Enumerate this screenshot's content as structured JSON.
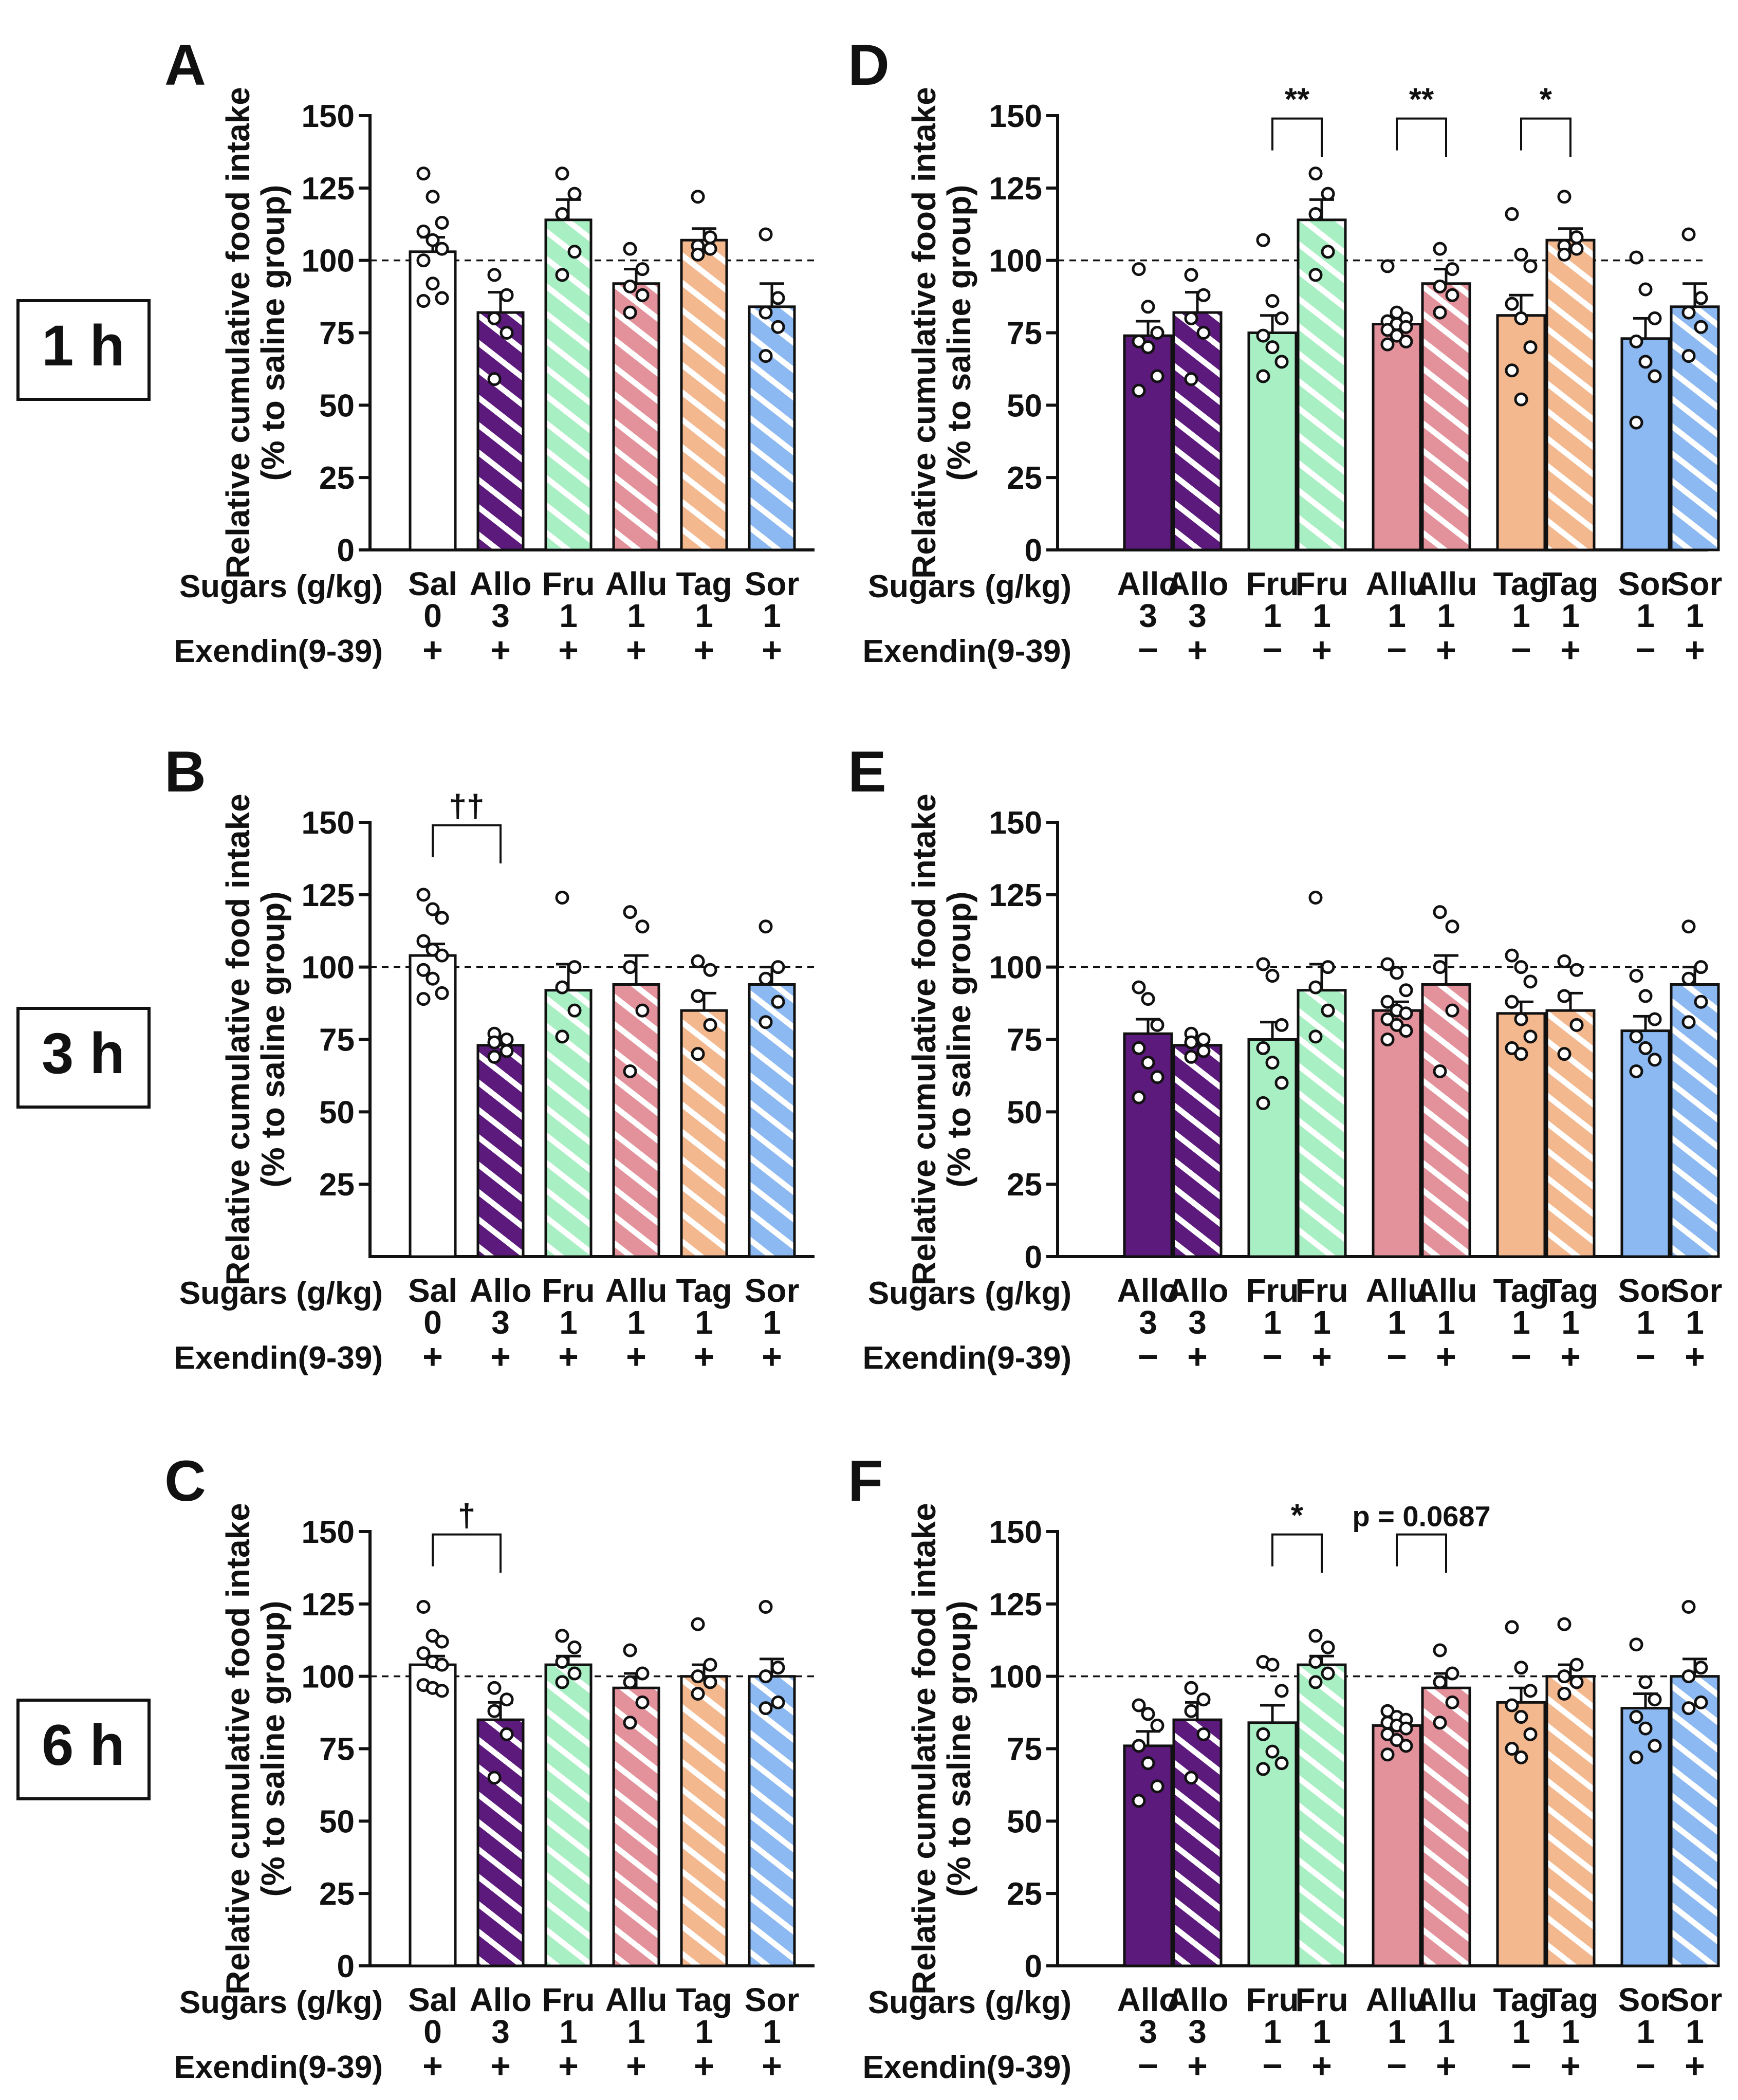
{
  "time_labels": [
    "1 h",
    "3 h",
    "6 h"
  ],
  "row_labels": {
    "sugars": "Sugars (g/kg)",
    "exendin": "Exendin(9-39)"
  },
  "colors": {
    "Sal": "#ffffff",
    "Allo": "#5c1a7c",
    "Fru": "#a8efc4",
    "Allu": "#e3929b",
    "Tag": "#f3b88e",
    "Sor": "#8cb9f2"
  },
  "chart_data": [
    {
      "id": "A",
      "type": "bar",
      "layout": "left",
      "title": "A",
      "ylabel_line1": "Relative cumulative food intake",
      "ylabel_line2": "(% to saline group)",
      "ylim": [
        0,
        150
      ],
      "yticks": [
        "0",
        "25",
        "50",
        "75",
        "100",
        "125",
        "150"
      ],
      "reference_line": 100,
      "groups": [
        {
          "label": "Sal",
          "dose": "0",
          "exendin": "+",
          "color_key": "Sal",
          "hatched": false,
          "mean": 103,
          "sem": 5,
          "points": [
            130,
            122,
            113,
            110,
            107,
            104,
            100,
            92,
            87,
            86
          ]
        },
        {
          "label": "Allo",
          "dose": "3",
          "exendin": "+",
          "color_key": "Allo",
          "hatched": true,
          "mean": 82,
          "sem": 7,
          "points": [
            95,
            88,
            80,
            75,
            59
          ]
        },
        {
          "label": "Fru",
          "dose": "1",
          "exendin": "+",
          "color_key": "Fru",
          "hatched": true,
          "mean": 114,
          "sem": 7,
          "points": [
            130,
            123,
            116,
            103,
            95
          ]
        },
        {
          "label": "Allu",
          "dose": "1",
          "exendin": "+",
          "color_key": "Allu",
          "hatched": true,
          "mean": 92,
          "sem": 5,
          "points": [
            104,
            97,
            91,
            88,
            82
          ]
        },
        {
          "label": "Tag",
          "dose": "1",
          "exendin": "+",
          "color_key": "Tag",
          "hatched": true,
          "mean": 107,
          "sem": 4,
          "points": [
            122,
            108,
            105,
            104,
            102
          ]
        },
        {
          "label": "Sor",
          "dose": "1",
          "exendin": "+",
          "color_key": "Sor",
          "hatched": true,
          "mean": 84,
          "sem": 8,
          "points": [
            109,
            87,
            82,
            77,
            67
          ]
        }
      ],
      "annotations": []
    },
    {
      "id": "B",
      "type": "bar",
      "layout": "left",
      "title": "B",
      "ylabel_line1": "Relative cumulative food intake",
      "ylabel_line2": "(% to saline group)",
      "ylim": [
        0,
        150
      ],
      "yticks": [
        "25",
        "50",
        "75",
        "100",
        "125",
        "150"
      ],
      "reference_line": 100,
      "groups": [
        {
          "label": "Sal",
          "dose": "0",
          "exendin": "+",
          "color_key": "Sal",
          "hatched": false,
          "mean": 104,
          "sem": 4,
          "points": [
            125,
            120,
            117,
            109,
            106,
            104,
            99,
            96,
            91,
            89
          ]
        },
        {
          "label": "Allo",
          "dose": "3",
          "exendin": "+",
          "color_key": "Allo",
          "hatched": true,
          "mean": 73,
          "sem": 2,
          "points": [
            77,
            75,
            74,
            71,
            69
          ]
        },
        {
          "label": "Fru",
          "dose": "1",
          "exendin": "+",
          "color_key": "Fru",
          "hatched": true,
          "mean": 92,
          "sem": 9,
          "points": [
            124,
            100,
            93,
            85,
            76
          ]
        },
        {
          "label": "Allu",
          "dose": "1",
          "exendin": "+",
          "color_key": "Allu",
          "hatched": true,
          "mean": 94,
          "sem": 10,
          "points": [
            119,
            114,
            100,
            85,
            64
          ]
        },
        {
          "label": "Tag",
          "dose": "1",
          "exendin": "+",
          "color_key": "Tag",
          "hatched": true,
          "mean": 85,
          "sem": 6,
          "points": [
            102,
            99,
            90,
            80,
            70
          ]
        },
        {
          "label": "Sor",
          "dose": "1",
          "exendin": "+",
          "color_key": "Sor",
          "hatched": true,
          "mean": 94,
          "sem": 6,
          "points": [
            114,
            100,
            96,
            88,
            81
          ]
        }
      ],
      "annotations": [
        {
          "type": "bracket",
          "from": 0,
          "to": 1,
          "text": "††",
          "y": 149
        }
      ]
    },
    {
      "id": "C",
      "type": "bar",
      "layout": "left",
      "title": "C",
      "ylabel_line1": "Relative cumulative food intake",
      "ylabel_line2": "(% to saline group)",
      "ylim": [
        0,
        150
      ],
      "yticks": [
        "0",
        "25",
        "50",
        "75",
        "100",
        "125",
        "150"
      ],
      "reference_line": 100,
      "groups": [
        {
          "label": "Sal",
          "dose": "0",
          "exendin": "+",
          "color_key": "Sal",
          "hatched": false,
          "mean": 104,
          "sem": 3,
          "points": [
            124,
            114,
            112,
            108,
            105,
            104,
            97,
            96,
            95
          ]
        },
        {
          "label": "Allo",
          "dose": "3",
          "exendin": "+",
          "color_key": "Allo",
          "hatched": true,
          "mean": 85,
          "sem": 6,
          "points": [
            96,
            92,
            88,
            80,
            65
          ]
        },
        {
          "label": "Fru",
          "dose": "1",
          "exendin": "+",
          "color_key": "Fru",
          "hatched": true,
          "mean": 104,
          "sem": 3,
          "points": [
            114,
            110,
            105,
            101,
            98
          ]
        },
        {
          "label": "Allu",
          "dose": "1",
          "exendin": "+",
          "color_key": "Allu",
          "hatched": true,
          "mean": 96,
          "sem": 5,
          "points": [
            109,
            101,
            98,
            91,
            84
          ]
        },
        {
          "label": "Tag",
          "dose": "1",
          "exendin": "+",
          "color_key": "Tag",
          "hatched": true,
          "mean": 100,
          "sem": 4,
          "points": [
            118,
            104,
            100,
            98,
            94
          ]
        },
        {
          "label": "Sor",
          "dose": "1",
          "exendin": "+",
          "color_key": "Sor",
          "hatched": true,
          "mean": 100,
          "sem": 6,
          "points": [
            124,
            103,
            100,
            91,
            89
          ]
        }
      ],
      "annotations": [
        {
          "type": "bracket",
          "from": 0,
          "to": 1,
          "text": "†",
          "y": 149
        }
      ]
    },
    {
      "id": "D",
      "type": "bar",
      "layout": "right",
      "title": "D",
      "ylabel_line1": "Relative cumulative food intake",
      "ylabel_line2": "(% to saline group)",
      "ylim": [
        0,
        150
      ],
      "yticks": [
        "0",
        "25",
        "50",
        "75",
        "100",
        "125",
        "150"
      ],
      "reference_line": 100,
      "groups": [
        {
          "label": "Allo",
          "dose": "3",
          "exendin": "−",
          "color_key": "Allo",
          "hatched": false,
          "mean": 74,
          "sem": 5,
          "points": [
            97,
            84,
            75,
            72,
            70,
            60,
            55
          ]
        },
        {
          "label": "Allo",
          "dose": "3",
          "exendin": "+",
          "color_key": "Allo",
          "hatched": true,
          "mean": 82,
          "sem": 7,
          "points": [
            95,
            88,
            80,
            75,
            59
          ]
        },
        {
          "label": "Fru",
          "dose": "1",
          "exendin": "−",
          "color_key": "Fru",
          "hatched": false,
          "mean": 75,
          "sem": 6,
          "points": [
            107,
            86,
            80,
            74,
            70,
            65,
            60
          ]
        },
        {
          "label": "Fru",
          "dose": "1",
          "exendin": "+",
          "color_key": "Fru",
          "hatched": true,
          "mean": 114,
          "sem": 7,
          "points": [
            130,
            123,
            116,
            103,
            95
          ]
        },
        {
          "label": "Allu",
          "dose": "1",
          "exendin": "−",
          "color_key": "Allu",
          "hatched": false,
          "mean": 78,
          "sem": 2,
          "points": [
            98,
            82,
            80,
            79,
            78,
            77,
            76,
            74,
            72,
            71
          ]
        },
        {
          "label": "Allu",
          "dose": "1",
          "exendin": "+",
          "color_key": "Allu",
          "hatched": true,
          "mean": 92,
          "sem": 5,
          "points": [
            104,
            97,
            91,
            88,
            82
          ]
        },
        {
          "label": "Tag",
          "dose": "1",
          "exendin": "−",
          "color_key": "Tag",
          "hatched": false,
          "mean": 81,
          "sem": 7,
          "points": [
            116,
            102,
            98,
            85,
            80,
            70,
            62,
            52
          ]
        },
        {
          "label": "Tag",
          "dose": "1",
          "exendin": "+",
          "color_key": "Tag",
          "hatched": true,
          "mean": 107,
          "sem": 4,
          "points": [
            122,
            108,
            105,
            104,
            102
          ]
        },
        {
          "label": "Sor",
          "dose": "1",
          "exendin": "−",
          "color_key": "Sor",
          "hatched": false,
          "mean": 73,
          "sem": 7,
          "points": [
            101,
            90,
            80,
            72,
            65,
            60,
            44
          ]
        },
        {
          "label": "Sor",
          "dose": "1",
          "exendin": "+",
          "color_key": "Sor",
          "hatched": true,
          "mean": 84,
          "sem": 8,
          "points": [
            109,
            87,
            82,
            77,
            67
          ]
        }
      ],
      "annotations": [
        {
          "type": "bracket",
          "from": 2,
          "to": 3,
          "text": "**",
          "y": 149
        },
        {
          "type": "bracket",
          "from": 4,
          "to": 5,
          "text": "**",
          "y": 149
        },
        {
          "type": "bracket",
          "from": 6,
          "to": 7,
          "text": "*",
          "y": 149
        }
      ]
    },
    {
      "id": "E",
      "type": "bar",
      "layout": "right",
      "title": "E",
      "ylabel_line1": "Relative cumulative food intake",
      "ylabel_line2": "(% to saline group)",
      "ylim": [
        0,
        150
      ],
      "yticks": [
        "0",
        "25",
        "50",
        "75",
        "100",
        "125",
        "150"
      ],
      "reference_line": 100,
      "groups": [
        {
          "label": "Allo",
          "dose": "3",
          "exendin": "−",
          "color_key": "Allo",
          "hatched": false,
          "mean": 77,
          "sem": 5,
          "points": [
            93,
            89,
            80,
            72,
            67,
            62,
            55
          ]
        },
        {
          "label": "Allo",
          "dose": "3",
          "exendin": "+",
          "color_key": "Allo",
          "hatched": true,
          "mean": 73,
          "sem": 2,
          "points": [
            77,
            75,
            74,
            71,
            69
          ]
        },
        {
          "label": "Fru",
          "dose": "1",
          "exendin": "−",
          "color_key": "Fru",
          "hatched": false,
          "mean": 75,
          "sem": 6,
          "points": [
            101,
            97,
            80,
            72,
            67,
            60,
            53
          ]
        },
        {
          "label": "Fru",
          "dose": "1",
          "exendin": "+",
          "color_key": "Fru",
          "hatched": true,
          "mean": 92,
          "sem": 9,
          "points": [
            124,
            100,
            93,
            85,
            76
          ]
        },
        {
          "label": "Allu",
          "dose": "1",
          "exendin": "−",
          "color_key": "Allu",
          "hatched": false,
          "mean": 85,
          "sem": 3,
          "points": [
            101,
            98,
            92,
            88,
            85,
            84,
            82,
            80,
            78,
            75
          ]
        },
        {
          "label": "Allu",
          "dose": "1",
          "exendin": "+",
          "color_key": "Allu",
          "hatched": true,
          "mean": 94,
          "sem": 10,
          "points": [
            119,
            114,
            100,
            85,
            64
          ]
        },
        {
          "label": "Tag",
          "dose": "1",
          "exendin": "−",
          "color_key": "Tag",
          "hatched": false,
          "mean": 84,
          "sem": 4,
          "points": [
            104,
            100,
            95,
            88,
            82,
            76,
            72,
            70
          ]
        },
        {
          "label": "Tag",
          "dose": "1",
          "exendin": "+",
          "color_key": "Tag",
          "hatched": true,
          "mean": 85,
          "sem": 6,
          "points": [
            102,
            99,
            90,
            80,
            70
          ]
        },
        {
          "label": "Sor",
          "dose": "1",
          "exendin": "−",
          "color_key": "Sor",
          "hatched": false,
          "mean": 78,
          "sem": 5,
          "points": [
            97,
            90,
            82,
            76,
            72,
            68,
            64
          ]
        },
        {
          "label": "Sor",
          "dose": "1",
          "exendin": "+",
          "color_key": "Sor",
          "hatched": true,
          "mean": 94,
          "sem": 6,
          "points": [
            114,
            100,
            96,
            88,
            81
          ]
        }
      ],
      "annotations": []
    },
    {
      "id": "F",
      "type": "bar",
      "layout": "right",
      "title": "F",
      "ylabel_line1": "Relative cumulative food intake",
      "ylabel_line2": "(% to saline group)",
      "ylim": [
        0,
        150
      ],
      "yticks": [
        "0",
        "25",
        "50",
        "75",
        "100",
        "125",
        "150"
      ],
      "reference_line": 100,
      "groups": [
        {
          "label": "Allo",
          "dose": "3",
          "exendin": "−",
          "color_key": "Allo",
          "hatched": false,
          "mean": 76,
          "sem": 5,
          "points": [
            90,
            87,
            83,
            76,
            70,
            62,
            57
          ]
        },
        {
          "label": "Allo",
          "dose": "3",
          "exendin": "+",
          "color_key": "Allo",
          "hatched": true,
          "mean": 85,
          "sem": 6,
          "points": [
            96,
            92,
            88,
            80,
            65
          ]
        },
        {
          "label": "Fru",
          "dose": "1",
          "exendin": "−",
          "color_key": "Fru",
          "hatched": false,
          "mean": 84,
          "sem": 6,
          "points": [
            105,
            104,
            95,
            80,
            74,
            70,
            68
          ]
        },
        {
          "label": "Fru",
          "dose": "1",
          "exendin": "+",
          "color_key": "Fru",
          "hatched": true,
          "mean": 104,
          "sem": 3,
          "points": [
            114,
            110,
            105,
            101,
            98
          ]
        },
        {
          "label": "Allu",
          "dose": "1",
          "exendin": "−",
          "color_key": "Allu",
          "hatched": false,
          "mean": 83,
          "sem": 2,
          "points": [
            88,
            86,
            85,
            84,
            83,
            82,
            80,
            78,
            76,
            73
          ]
        },
        {
          "label": "Allu",
          "dose": "1",
          "exendin": "+",
          "color_key": "Allu",
          "hatched": true,
          "mean": 96,
          "sem": 5,
          "points": [
            109,
            101,
            98,
            91,
            84
          ]
        },
        {
          "label": "Tag",
          "dose": "1",
          "exendin": "−",
          "color_key": "Tag",
          "hatched": false,
          "mean": 91,
          "sem": 5,
          "points": [
            117,
            103,
            95,
            90,
            86,
            80,
            75,
            72
          ]
        },
        {
          "label": "Tag",
          "dose": "1",
          "exendin": "+",
          "color_key": "Tag",
          "hatched": true,
          "mean": 100,
          "sem": 4,
          "points": [
            118,
            104,
            100,
            98,
            94
          ]
        },
        {
          "label": "Sor",
          "dose": "1",
          "exendin": "−",
          "color_key": "Sor",
          "hatched": false,
          "mean": 89,
          "sem": 5,
          "points": [
            111,
            98,
            92,
            86,
            82,
            76,
            72
          ]
        },
        {
          "label": "Sor",
          "dose": "1",
          "exendin": "+",
          "color_key": "Sor",
          "hatched": true,
          "mean": 100,
          "sem": 6,
          "points": [
            124,
            103,
            100,
            91,
            89
          ]
        }
      ],
      "annotations": [
        {
          "type": "bracket",
          "from": 2,
          "to": 3,
          "text": "*",
          "y": 149
        },
        {
          "type": "bracket",
          "from": 4,
          "to": 5,
          "text": "p = 0.0687",
          "y": 149
        }
      ]
    }
  ]
}
